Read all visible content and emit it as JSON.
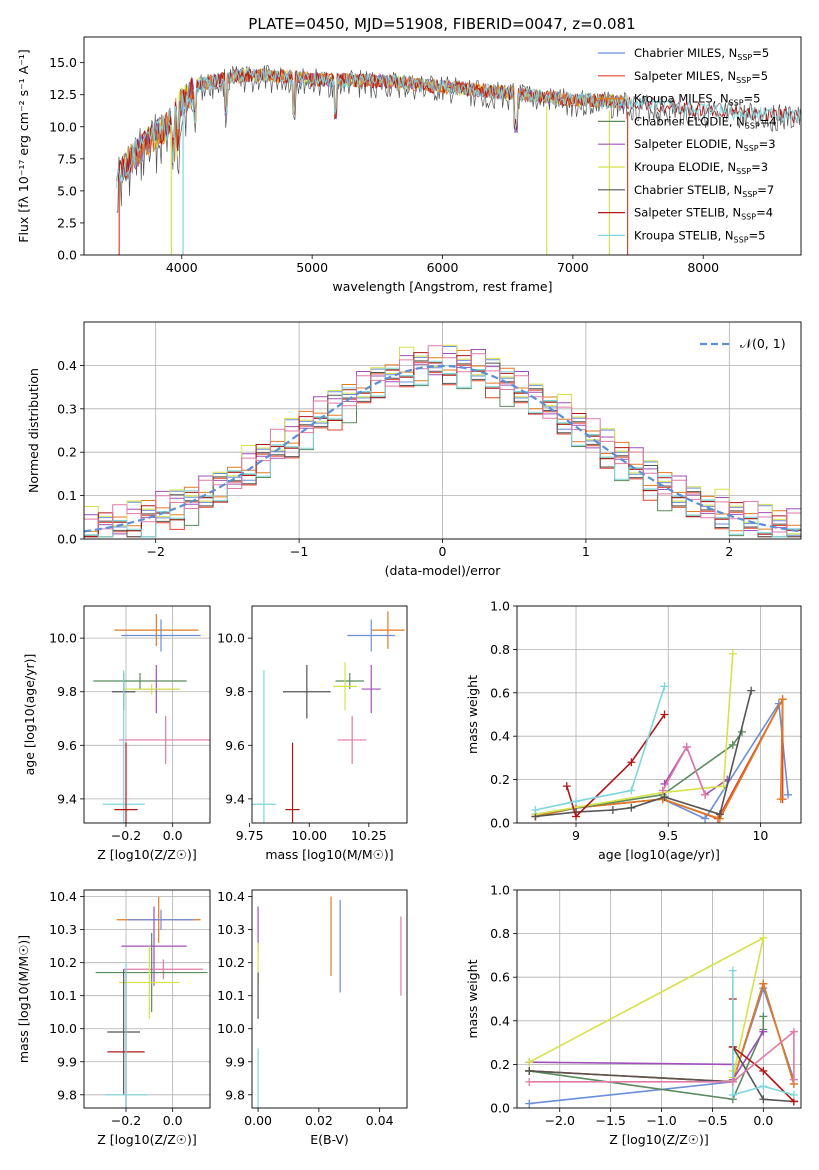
{
  "title": "PLATE=0450, MJD=51908, FIBERID=0047, z=0.081",
  "colors": {
    "Chabrier MILES": "#6b8fd6",
    "Salpeter MILES": "#e0442c",
    "Kroupa MILES": "#e07b22",
    "Chabrier ELODIE": "#5a8a5e",
    "Salpeter ELODIE": "#a050b8",
    "Kroupa ELODIE": "#d6e24a",
    "Chabrier STELIB": "#555555",
    "Salpeter STELIB": "#b01818",
    "Kroupa STELIB": "#7fd6dc",
    "hist_extra": "#e07aa8",
    "normal": "#5b8fd6"
  },
  "chart_data": [
    {
      "type": "line",
      "title": "PLATE=0450, MJD=51908, FIBERID=0047, z=0.081",
      "xlabel": "wavelength [Angstrom, rest frame]",
      "ylabel": "Flux [fλ 10⁻¹⁷ erg cm⁻² s⁻¹ A⁻¹]",
      "xlim": [
        3250,
        8750
      ],
      "ylim": [
        0,
        17
      ],
      "xticks": [
        4000,
        5000,
        6000,
        7000,
        8000
      ],
      "yticks": [
        0.0,
        2.5,
        5.0,
        7.5,
        10.0,
        12.5,
        15.0
      ],
      "legend_position": "right",
      "legend": [
        "Chabrier MILES, N_SSP=5",
        "Salpeter MILES, N_SSP=5",
        "Kroupa MILES, N_SSP=5",
        "Chabrier ELODIE, N_SSP=4",
        "Salpeter ELODIE, N_SSP=3",
        "Kroupa ELODIE, N_SSP=3",
        "Chabrier STELIB, N_SSP=7",
        "Salpeter STELIB, N_SSP=4",
        "Kroupa STELIB, N_SSP=5"
      ],
      "legend_keys": [
        "Chabrier MILES",
        "Salpeter MILES",
        "Kroupa MILES",
        "Chabrier ELODIE",
        "Salpeter ELODIE",
        "Kroupa ELODIE",
        "Chabrier STELIB",
        "Salpeter STELIB",
        "Kroupa STELIB"
      ],
      "envelope": {
        "x": [
          3500,
          3600,
          3700,
          3800,
          3900,
          4000,
          4100,
          4200,
          4400,
          4600,
          4800,
          5000,
          5200,
          5400,
          5600,
          5800,
          6000,
          6200,
          6400,
          6600,
          6800,
          7000,
          7200,
          7400,
          7600,
          7800,
          8000,
          8200,
          8400,
          8600,
          8750
        ],
        "y": [
          6.5,
          8.0,
          9.0,
          10.0,
          10.8,
          12.5,
          13.5,
          13.7,
          14.2,
          14.3,
          14.2,
          14.0,
          13.9,
          13.9,
          13.8,
          13.6,
          13.4,
          13.2,
          13.0,
          12.8,
          12.6,
          12.4,
          12.3,
          12.2,
          12.0,
          11.8,
          11.6,
          11.4,
          11.3,
          11.2,
          11.1
        ]
      },
      "drops": [
        {
          "x": 3520,
          "key": "Salpeter MILES"
        },
        {
          "x": 3920,
          "key": "Kroupa ELODIE"
        },
        {
          "x": 4010,
          "key": "Kroupa STELIB"
        },
        {
          "x": 6800,
          "key": "Kroupa ELODIE"
        },
        {
          "x": 7280,
          "key": "Kroupa ELODIE"
        },
        {
          "x": 7420,
          "key": "Salpeter MILES"
        }
      ]
    },
    {
      "type": "histogram",
      "xlabel": "(data-model)/error",
      "ylabel": "Normed distribution",
      "xlim": [
        -2.5,
        2.5
      ],
      "ylim": [
        0,
        0.5
      ],
      "xticks": [
        -2,
        -1,
        0,
        1,
        2
      ],
      "yticks": [
        0.0,
        0.1,
        0.2,
        0.3,
        0.4
      ],
      "legend": [
        "𝒩(0, 1)"
      ],
      "legend_position": "top-right",
      "bin_width": 0.1,
      "bin_start": -2.5,
      "keys": [
        "Chabrier MILES",
        "Salpeter MILES",
        "Kroupa MILES",
        "Chabrier ELODIE",
        "Salpeter ELODIE",
        "Kroupa ELODIE",
        "Chabrier STELIB",
        "Salpeter STELIB",
        "Kroupa STELIB",
        "hist_extra"
      ],
      "offsets": [
        0.01,
        -0.015,
        0.005,
        -0.02,
        0.015,
        0.02,
        -0.005,
        0.0,
        -0.01,
        0.012
      ]
    },
    {
      "type": "scatter",
      "xlabel": "Z [log10(Z/Z☉)]",
      "ylabel": "age  [log10(age/yr)]",
      "xlim": [
        -0.38,
        0.16
      ],
      "ylim": [
        9.31,
        10.12
      ],
      "xticks": [
        -0.2,
        0.0
      ],
      "xticklabels": [
        "−0.2",
        "0.0"
      ],
      "yticks": [
        9.4,
        9.6,
        9.8,
        10.0
      ],
      "points": [
        {
          "key": "Kroupa MILES",
          "x": -0.07,
          "y": 10.03,
          "xerr": 0.18,
          "yerr": 0.06
        },
        {
          "key": "Chabrier MILES",
          "x": -0.05,
          "y": 10.01,
          "xerr": 0.17,
          "yerr": 0.06
        },
        {
          "key": "Chabrier ELODIE",
          "x": -0.14,
          "y": 9.84,
          "xerr": 0.2,
          "yerr": 0.03
        },
        {
          "key": "Salpeter ELODIE",
          "x": -0.07,
          "y": 9.81,
          "xerr": 0.1,
          "yerr": 0.09
        },
        {
          "key": "Kroupa ELODIE",
          "x": -0.09,
          "y": 9.81,
          "xerr": 0.12,
          "yerr": 0.02
        },
        {
          "key": "Chabrier STELIB",
          "x": -0.21,
          "y": 9.8,
          "xerr": 0.05,
          "yerr": 0.07
        },
        {
          "key": "hist_extra",
          "x": -0.03,
          "y": 9.62,
          "xerr": 0.2,
          "yerr": 0.09
        },
        {
          "key": "Kroupa STELIB",
          "x": -0.21,
          "y": 9.38,
          "xerr": 0.09,
          "yerr": 0.5
        },
        {
          "key": "Salpeter STELIB",
          "x": -0.2,
          "y": 9.36,
          "xerr": 0.05,
          "yerr": 0.25
        }
      ]
    },
    {
      "type": "scatter",
      "xlabel": "mass [log10(M/M☉)]",
      "ylabel": "",
      "xlim": [
        9.76,
        10.41
      ],
      "ylim": [
        9.31,
        10.12
      ],
      "xticks": [
        9.75,
        10.0,
        10.25
      ],
      "xticklabels": [
        "9.75",
        "10.00",
        "10.25"
      ],
      "yticks": [
        9.4,
        9.6,
        9.8,
        10.0
      ],
      "points": [
        {
          "key": "Kroupa MILES",
          "x": 10.33,
          "y": 10.03,
          "xerr": 0.07,
          "yerr": 0.07
        },
        {
          "key": "Chabrier MILES",
          "x": 10.26,
          "y": 10.01,
          "xerr": 0.1,
          "yerr": 0.06
        },
        {
          "key": "Chabrier ELODIE",
          "x": 10.17,
          "y": 9.84,
          "xerr": 0.06,
          "yerr": 0.03
        },
        {
          "key": "Salpeter ELODIE",
          "x": 10.26,
          "y": 9.81,
          "xerr": 0.04,
          "yerr": 0.09
        },
        {
          "key": "Kroupa ELODIE",
          "x": 10.15,
          "y": 9.82,
          "xerr": 0.05,
          "yerr": 0.09
        },
        {
          "key": "Chabrier STELIB",
          "x": 9.99,
          "y": 9.8,
          "xerr": 0.1,
          "yerr": 0.1
        },
        {
          "key": "hist_extra",
          "x": 10.18,
          "y": 9.62,
          "xerr": 0.06,
          "yerr": 0.09
        },
        {
          "key": "Kroupa STELIB",
          "x": 9.81,
          "y": 9.38,
          "xerr": 0.05,
          "yerr": 0.5
        },
        {
          "key": "Salpeter STELIB",
          "x": 9.93,
          "y": 9.36,
          "xerr": 0.03,
          "yerr": 0.25
        }
      ]
    },
    {
      "type": "line",
      "xlabel": "age  [log10(age/yr)]",
      "ylabel": "mass weight",
      "xlim": [
        8.68,
        10.22
      ],
      "ylim": [
        0,
        1
      ],
      "xticks": [
        9.0,
        9.5,
        10.0
      ],
      "yticks": [
        0.0,
        0.2,
        0.4,
        0.6,
        0.8,
        1.0
      ],
      "series": [
        {
          "key": "Chabrier MILES",
          "x": [
            8.78,
            9.0,
            9.47,
            9.7,
            10.1,
            10.15
          ],
          "y": [
            0.03,
            0.07,
            0.11,
            0.02,
            0.55,
            0.13
          ]
        },
        {
          "key": "Salpeter MILES",
          "x": [
            8.78,
            9.0,
            9.47,
            9.77,
            10.12,
            10.12
          ],
          "y": [
            0.03,
            0.07,
            0.11,
            0.02,
            0.57,
            0.11
          ]
        },
        {
          "key": "Kroupa MILES",
          "x": [
            8.78,
            9.0,
            9.47,
            9.78,
            10.12,
            10.11
          ],
          "y": [
            0.03,
            0.07,
            0.11,
            0.02,
            0.57,
            0.11
          ]
        },
        {
          "key": "Chabrier ELODIE",
          "x": [
            8.78,
            9.47,
            9.85,
            9.9
          ],
          "y": [
            0.04,
            0.13,
            0.36,
            0.42
          ]
        },
        {
          "key": "Salpeter ELODIE",
          "x": [
            9.48,
            9.6,
            9.7,
            9.82
          ],
          "y": [
            0.18,
            0.35,
            0.13,
            0.2
          ]
        },
        {
          "key": "Kroupa ELODIE",
          "x": [
            8.78,
            9.47,
            9.8,
            9.85
          ],
          "y": [
            0.04,
            0.14,
            0.17,
            0.78
          ]
        },
        {
          "key": "Chabrier STELIB",
          "x": [
            8.78,
            9.0,
            9.2,
            9.3,
            9.48,
            9.78,
            9.95
          ],
          "y": [
            0.03,
            0.05,
            0.06,
            0.07,
            0.12,
            0.04,
            0.61
          ]
        },
        {
          "key": "Salpeter STELIB",
          "x": [
            8.95,
            9.0,
            9.3,
            9.48
          ],
          "y": [
            0.17,
            0.03,
            0.28,
            0.5
          ]
        },
        {
          "key": "Kroupa STELIB",
          "x": [
            8.78,
            9.0,
            9.3,
            9.48
          ],
          "y": [
            0.06,
            0.1,
            0.15,
            0.63
          ]
        },
        {
          "key": "hist_extra",
          "x": [
            9.47,
            9.6,
            9.7
          ],
          "y": [
            0.15,
            0.35,
            0.13
          ]
        }
      ]
    },
    {
      "type": "scatter",
      "xlabel": "Z [log10(Z/Z☉)]",
      "ylabel": "mass [log10(M/M☉)]",
      "xlim": [
        -0.38,
        0.16
      ],
      "ylim": [
        9.76,
        10.42
      ],
      "xticks": [
        -0.2,
        0.0
      ],
      "xticklabels": [
        "−0.2",
        "0.0"
      ],
      "yticks": [
        9.8,
        9.9,
        10.0,
        10.1,
        10.2,
        10.3,
        10.4
      ],
      "points": [
        {
          "key": "Kroupa MILES",
          "x": -0.06,
          "y": 10.33,
          "xerr": 0.18,
          "yerr": 0.07
        },
        {
          "key": "Chabrier MILES",
          "x": -0.05,
          "y": 10.33,
          "xerr": 0.14,
          "yerr": 0.03
        },
        {
          "key": "Salpeter ELODIE",
          "x": -0.08,
          "y": 10.25,
          "xerr": 0.14,
          "yerr": 0.12
        },
        {
          "key": "hist_extra",
          "x": -0.04,
          "y": 10.18,
          "xerr": 0.17,
          "yerr": 0.03
        },
        {
          "key": "Chabrier ELODIE",
          "x": -0.09,
          "y": 10.17,
          "xerr": 0.24,
          "yerr": 0.12
        },
        {
          "key": "Kroupa ELODIE",
          "x": -0.1,
          "y": 10.14,
          "xerr": 0.13,
          "yerr": 0.11
        },
        {
          "key": "Chabrier STELIB",
          "x": -0.21,
          "y": 9.99,
          "xerr": 0.07,
          "yerr": 0.19
        },
        {
          "key": "Salpeter STELIB",
          "x": -0.2,
          "y": 9.93,
          "xerr": 0.08,
          "yerr": 0.25
        },
        {
          "key": "Kroupa STELIB",
          "x": -0.2,
          "y": 9.8,
          "xerr": 0.09,
          "yerr": 0.4
        }
      ]
    },
    {
      "type": "scatter",
      "xlabel": "E(B-V)",
      "ylabel": "",
      "xlim": [
        -0.002,
        0.049
      ],
      "ylim": [
        9.76,
        10.42
      ],
      "xticks": [
        0.0,
        0.02,
        0.04
      ],
      "xticklabels": [
        "0.00",
        "0.02",
        "0.04"
      ],
      "yticks": [
        9.8,
        9.9,
        10.0,
        10.1,
        10.2,
        10.3,
        10.4
      ],
      "points": [
        {
          "key": "Kroupa MILES",
          "x": 0.024,
          "y": 10.28,
          "xerr": 0,
          "yerr": 0.12
        },
        {
          "key": "Chabrier MILES",
          "x": 0.027,
          "y": 10.25,
          "xerr": 0,
          "yerr": 0.14
        },
        {
          "key": "hist_extra",
          "x": 0.047,
          "y": 10.22,
          "xerr": 0,
          "yerr": 0.12
        },
        {
          "key": "Salpeter ELODIE",
          "x": 0.0,
          "y": 10.3,
          "xerr": 0,
          "yerr": 0.07
        },
        {
          "key": "Kroupa ELODIE",
          "x": 0.0,
          "y": 10.2,
          "xerr": 0,
          "yerr": 0.06
        },
        {
          "key": "Chabrier STELIB",
          "x": 0.0,
          "y": 10.1,
          "xerr": 0,
          "yerr": 0.07
        },
        {
          "key": "Kroupa STELIB",
          "x": 0.0,
          "y": 9.85,
          "xerr": 0,
          "yerr": 0.09
        }
      ]
    },
    {
      "type": "line",
      "xlabel": "Z [log10(Z/Z☉)]",
      "ylabel": "mass weight",
      "xlim": [
        -2.42,
        0.37
      ],
      "ylim": [
        0,
        1
      ],
      "xticks": [
        -2.0,
        -1.5,
        -1.0,
        -0.5,
        0.0
      ],
      "xticklabels": [
        "−2.0",
        "−1.5",
        "−1.0",
        "−0.5",
        "0.0"
      ],
      "yticks": [
        0.0,
        0.2,
        0.4,
        0.6,
        0.8,
        1.0
      ],
      "series": [
        {
          "key": "Chabrier MILES",
          "x": [
            -2.3,
            -0.3,
            0.0,
            0.3
          ],
          "y": [
            0.02,
            0.12,
            0.55,
            0.13
          ]
        },
        {
          "key": "Salpeter MILES",
          "x": [
            -2.3,
            -0.3,
            0.0,
            0.3
          ],
          "y": [
            0.17,
            0.12,
            0.57,
            0.11
          ]
        },
        {
          "key": "Kroupa MILES",
          "x": [
            -2.3,
            -0.3,
            0.0,
            0.3
          ],
          "y": [
            0.17,
            0.12,
            0.57,
            0.11
          ]
        },
        {
          "key": "Chabrier ELODIE",
          "x": [
            -2.3,
            -0.3,
            0.0,
            0.0
          ],
          "y": [
            0.17,
            0.04,
            0.36,
            0.42
          ]
        },
        {
          "key": "Salpeter ELODIE",
          "x": [
            -2.3,
            -0.3,
            -0.3,
            0.0
          ],
          "y": [
            0.21,
            0.2,
            0.13,
            0.35
          ]
        },
        {
          "key": "Kroupa ELODIE",
          "x": [
            -2.3,
            0.0,
            -0.3,
            -0.3
          ],
          "y": [
            0.21,
            0.78,
            0.14,
            0.17
          ]
        },
        {
          "key": "Chabrier STELIB",
          "x": [
            -2.3,
            -0.3,
            -0.3,
            0.0,
            0.3
          ],
          "y": [
            0.17,
            0.12,
            0.28,
            0.04,
            0.03
          ]
        },
        {
          "key": "Salpeter STELIB",
          "x": [
            -0.3,
            -0.3,
            0.0,
            0.3
          ],
          "y": [
            0.5,
            0.28,
            0.17,
            0.03
          ]
        },
        {
          "key": "Kroupa STELIB",
          "x": [
            -0.3,
            -0.3,
            0.0,
            0.3
          ],
          "y": [
            0.63,
            0.06,
            0.1,
            0.06
          ]
        },
        {
          "key": "hist_extra",
          "x": [
            -2.3,
            -0.3,
            0.3,
            0.3
          ],
          "y": [
            0.12,
            0.12,
            0.35,
            0.13
          ]
        }
      ]
    }
  ]
}
